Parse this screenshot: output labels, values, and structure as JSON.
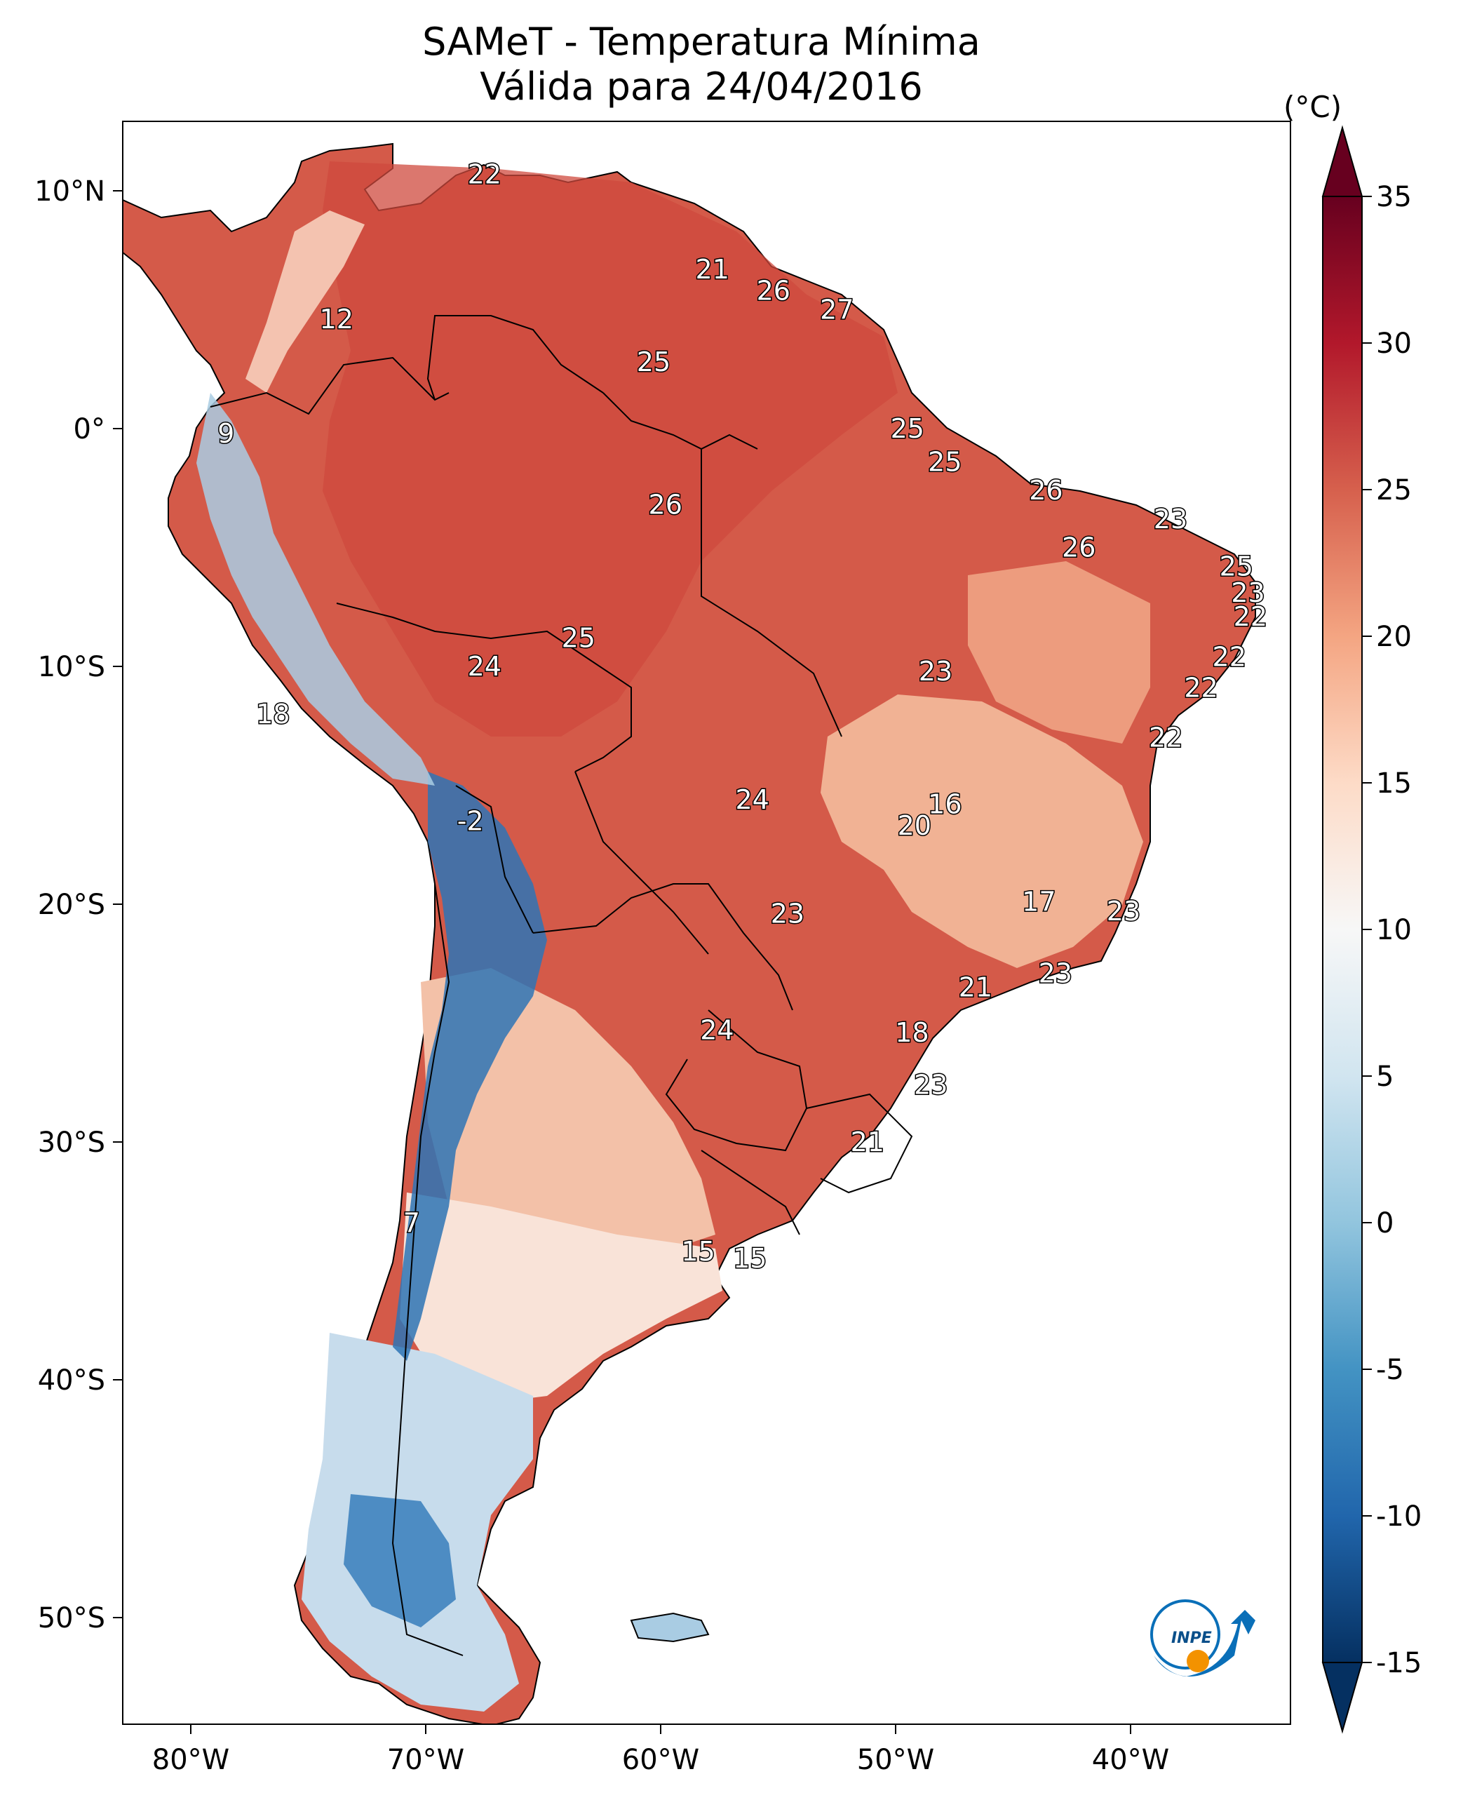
{
  "title_line1": "SAMeT - Temperatura Mínima",
  "title_line2": "Válida para 24/04/2016",
  "colorbar": {
    "unit": "(°C)",
    "min": -15,
    "max": 35,
    "ticks": [
      "35",
      "30",
      "25",
      "20",
      "15",
      "10",
      "5",
      "0",
      "-5",
      "-10",
      "-15"
    ],
    "tick_values": [
      35,
      30,
      25,
      20,
      15,
      10,
      5,
      0,
      -5,
      -10,
      -15
    ],
    "colors": [
      "#053061",
      "#2166ac",
      "#4393c3",
      "#92c5de",
      "#d1e5f0",
      "#f7f7f7",
      "#fddbc7",
      "#f4a582",
      "#d6604d",
      "#b2182b",
      "#67001f"
    ]
  },
  "axes": {
    "lon_labels": [
      "80°W",
      "70°W",
      "60°W",
      "50°W",
      "40°W"
    ],
    "lat_labels": [
      "10°N",
      "0°",
      "10°S",
      "20°S",
      "30°S",
      "40°S",
      "50°S"
    ]
  },
  "logo": {
    "text": "INPE",
    "colors": [
      "#0a6fb8",
      "#f39200"
    ]
  },
  "station_values": [
    {
      "label": "22",
      "lon": -67.5,
      "lat": 10.7
    },
    {
      "label": "12",
      "lon": -73.8,
      "lat": 4.6
    },
    {
      "label": "21",
      "lon": -57.8,
      "lat": 6.7
    },
    {
      "label": "26",
      "lon": -55.2,
      "lat": 5.8
    },
    {
      "label": "27",
      "lon": -52.5,
      "lat": 5.0
    },
    {
      "label": "25",
      "lon": -60.3,
      "lat": 2.8
    },
    {
      "label": "9",
      "lon": -78.5,
      "lat": -0.2
    },
    {
      "label": "25",
      "lon": -49.5,
      "lat": 0.0
    },
    {
      "label": "25",
      "lon": -47.9,
      "lat": -1.4
    },
    {
      "label": "26",
      "lon": -59.8,
      "lat": -3.2
    },
    {
      "label": "26",
      "lon": -43.6,
      "lat": -2.6
    },
    {
      "label": "23",
      "lon": -38.3,
      "lat": -3.8
    },
    {
      "label": "26",
      "lon": -42.2,
      "lat": -5.0
    },
    {
      "label": "25",
      "lon": -35.5,
      "lat": -5.8
    },
    {
      "label": "23",
      "lon": -35.0,
      "lat": -6.9
    },
    {
      "label": "22",
      "lon": -34.9,
      "lat": -7.9
    },
    {
      "label": "25",
      "lon": -63.5,
      "lat": -8.8
    },
    {
      "label": "22",
      "lon": -35.8,
      "lat": -9.6
    },
    {
      "label": "24",
      "lon": -67.5,
      "lat": -10.0
    },
    {
      "label": "23",
      "lon": -48.3,
      "lat": -10.2
    },
    {
      "label": "22",
      "lon": -37.0,
      "lat": -10.9
    },
    {
      "label": "18",
      "lon": -76.5,
      "lat": -12.0
    },
    {
      "label": "22",
      "lon": -38.5,
      "lat": -13.0
    },
    {
      "label": "24",
      "lon": -56.1,
      "lat": -15.6
    },
    {
      "label": "16",
      "lon": -47.9,
      "lat": -15.8
    },
    {
      "label": "20",
      "lon": -49.2,
      "lat": -16.7
    },
    {
      "label": "-2",
      "lon": -68.1,
      "lat": -16.5
    },
    {
      "label": "17",
      "lon": -43.9,
      "lat": -19.9
    },
    {
      "label": "23",
      "lon": -40.3,
      "lat": -20.3
    },
    {
      "label": "23",
      "lon": -54.6,
      "lat": -20.4
    },
    {
      "label": "23",
      "lon": -43.2,
      "lat": -22.9
    },
    {
      "label": "21",
      "lon": -46.6,
      "lat": -23.5
    },
    {
      "label": "18",
      "lon": -49.3,
      "lat": -25.4
    },
    {
      "label": "24",
      "lon": -57.6,
      "lat": -25.3
    },
    {
      "label": "23",
      "lon": -48.5,
      "lat": -27.6
    },
    {
      "label": "21",
      "lon": -51.2,
      "lat": -30.0
    },
    {
      "label": "7",
      "lon": -70.6,
      "lat": -33.4
    },
    {
      "label": "15",
      "lon": -58.4,
      "lat": -34.6
    },
    {
      "label": "15",
      "lon": -56.2,
      "lat": -34.9
    }
  ]
}
